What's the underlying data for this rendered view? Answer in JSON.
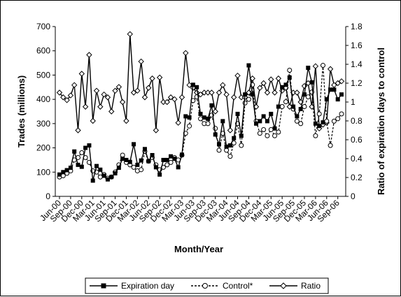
{
  "chart_data": {
    "type": "line",
    "title": "",
    "xlabel": "Month/Year",
    "ylabel_left": "Trades (millions)",
    "ylabel_right": "Ratio of expiration days to control",
    "ylim_left": [
      0,
      700
    ],
    "ylim_right": [
      0,
      1.8
    ],
    "yticks_left": [
      "0",
      "100",
      "200",
      "300",
      "400",
      "500",
      "600",
      "700"
    ],
    "yticks_right": [
      "0",
      "0.2",
      "0.4",
      "0.6",
      "0.8",
      "1",
      "1.2",
      "1.4",
      "1.6",
      "1.8"
    ],
    "grid": false,
    "legend_position": "bottom",
    "x": [
      "Jun-00",
      "Jul-00",
      "Aug-00",
      "Sep-00",
      "Oct-00",
      "Nov-00",
      "Dec-00",
      "Jan-01",
      "Feb-01",
      "Mar-01",
      "Apr-01",
      "May-01",
      "Jun-01",
      "Jul-01",
      "Aug-01",
      "Sep-01",
      "Oct-01",
      "Nov-01",
      "Dec-01",
      "Jan-02",
      "Feb-02",
      "Mar-02",
      "Apr-02",
      "May-02",
      "Jun-02",
      "Jul-02",
      "Aug-02",
      "Sep-02",
      "Oct-02",
      "Nov-02",
      "Dec-02",
      "Jan-03",
      "Feb-03",
      "Mar-03",
      "Apr-03",
      "May-03",
      "Jun-03",
      "Jul-03",
      "Aug-03",
      "Sep-03",
      "Oct-03",
      "Nov-03",
      "Dec-03",
      "Jan-04",
      "Feb-04",
      "Mar-04",
      "Apr-04",
      "May-04",
      "Jun-04",
      "Jul-04",
      "Aug-04",
      "Sep-04",
      "Oct-04",
      "Nov-04",
      "Dec-04",
      "Jan-05",
      "Feb-05",
      "Mar-05",
      "Apr-05",
      "May-05",
      "Jun-05",
      "Jul-05",
      "Aug-05",
      "Sep-05",
      "Oct-05",
      "Nov-05",
      "Dec-05",
      "Jan-06",
      "Feb-06",
      "Mar-06",
      "Apr-06",
      "May-06",
      "Jun-06",
      "Jul-06",
      "Aug-06",
      "Sep-06",
      "Oct-06"
    ],
    "x_tick_labels": [
      "Jun-00",
      "Sep-00",
      "Dec-00",
      "Mar-01",
      "Jun-01",
      "Sep-01",
      "Dec-01",
      "Mar-02",
      "Jun-02",
      "Sep-02",
      "Dec-02",
      "Mar-03",
      "Jun-03",
      "Sep-03",
      "Dec-03",
      "Mar-04",
      "Jun-04",
      "Sep-04",
      "Dec-04",
      "Mar-05",
      "Jun-05",
      "Sep-05",
      "Dec-05",
      "Mar-06",
      "Jun-06",
      "Sep-06"
    ],
    "series": [
      {
        "name": "Expiration day",
        "axis": "left",
        "marker": "filled-square",
        "line": "solid",
        "values": [
          90,
          100,
          108,
          118,
          185,
          130,
          122,
          200,
          210,
          65,
          125,
          110,
          85,
          70,
          80,
          95,
          118,
          155,
          150,
          142,
          215,
          130,
          148,
          195,
          145,
          170,
          120,
          90,
          150,
          150,
          165,
          155,
          120,
          172,
          330,
          325,
          460,
          450,
          340,
          325,
          320,
          375,
          255,
          215,
          310,
          205,
          210,
          240,
          340,
          250,
          420,
          540,
          420,
          300,
          310,
          330,
          310,
          340,
          280,
          370,
          450,
          460,
          490,
          370,
          330,
          360,
          420,
          530,
          470,
          300,
          290,
          305,
          400,
          440,
          440,
          400,
          420
        ]
      },
      {
        "name": "Control*",
        "axis": "left",
        "marker": "open-circle",
        "line": "dashed",
        "values": [
          80,
          85,
          95,
          105,
          150,
          160,
          180,
          160,
          140,
          105,
          100,
          80,
          90,
          75,
          80,
          100,
          130,
          170,
          140,
          130,
          120,
          105,
          110,
          185,
          145,
          160,
          130,
          110,
          120,
          130,
          140,
          160,
          150,
          170,
          260,
          290,
          395,
          410,
          320,
          300,
          300,
          335,
          280,
          190,
          260,
          190,
          165,
          220,
          300,
          210,
          385,
          400,
          460,
          310,
          260,
          275,
          250,
          275,
          250,
          265,
          370,
          390,
          520,
          360,
          310,
          300,
          370,
          410,
          430,
          250,
          340,
          540,
          310,
          210,
          310,
          320,
          340
        ]
      },
      {
        "name": "Ratio",
        "axis": "right",
        "marker": "open-diamond",
        "line": "solid",
        "values": [
          1.1,
          1.05,
          1.02,
          1.07,
          1.18,
          0.7,
          1.3,
          0.95,
          1.5,
          0.8,
          1.12,
          0.95,
          1.08,
          1.05,
          0.9,
          1.12,
          1.16,
          1.0,
          0.8,
          1.72,
          1.1,
          1.12,
          1.43,
          1.05,
          1.15,
          1.25,
          0.7,
          1.26,
          1.0,
          1.0,
          1.05,
          1.03,
          0.78,
          1.05,
          1.52,
          1.18,
          1.15,
          1.1,
          1.08,
          1.1,
          1.1,
          1.1,
          0.9,
          1.1,
          1.18,
          1.08,
          0.7,
          1.05,
          1.28,
          1.05,
          1.05,
          1.1,
          1.25,
          0.95,
          1.15,
          1.2,
          1.1,
          1.24,
          1.1,
          1.25,
          1.12,
          1.15,
          0.95,
          1.1,
          1.1,
          1.0,
          1.17,
          1.2,
          0.95,
          1.38,
          0.72,
          0.76,
          0.78,
          1.35,
          1.18,
          1.2,
          1.22
        ]
      }
    ]
  }
}
